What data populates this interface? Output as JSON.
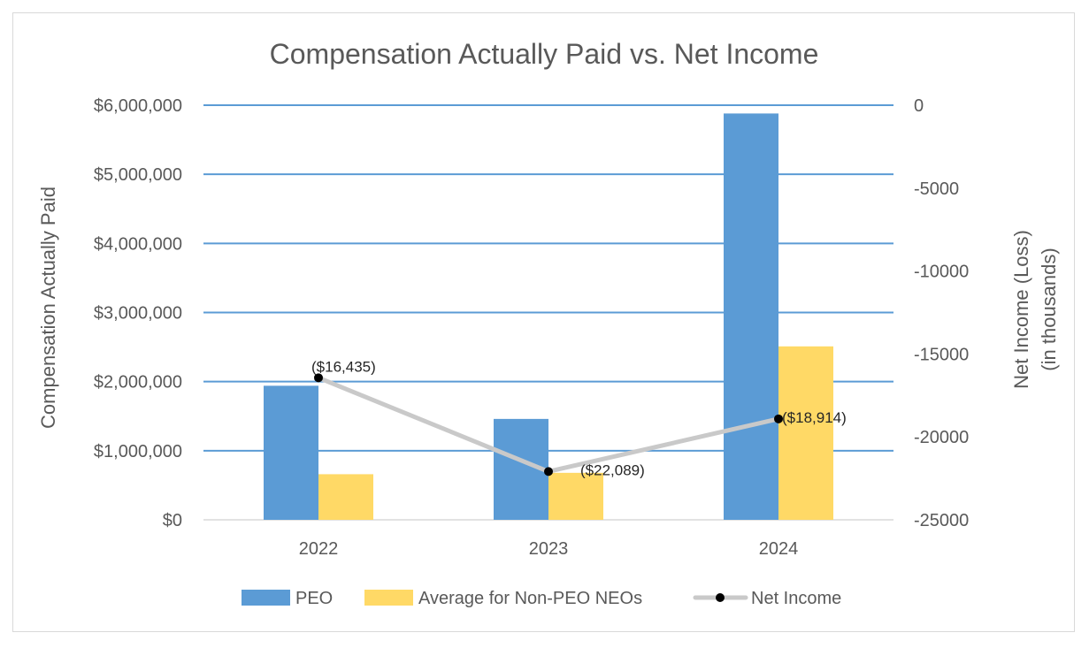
{
  "chart_data": {
    "type": "bar",
    "title": "Compensation Actually Paid vs. Net Income",
    "categories": [
      "2022",
      "2023",
      "2024"
    ],
    "ylabel": "Compensation Actually Paid",
    "y2label_line1": "Net Income (Loss)",
    "y2label_line2": "(in thousands)",
    "ylim": [
      0,
      6000000
    ],
    "y2lim": [
      -25000,
      0
    ],
    "yticks": [
      "$0",
      "$1,000,000",
      "$2,000,000",
      "$3,000,000",
      "$4,000,000",
      "$5,000,000",
      "$6,000,000"
    ],
    "y2ticks": [
      "-25000",
      "-20000",
      "-15000",
      "-10000",
      "-5000",
      "0"
    ],
    "grid": true,
    "legend_position": "bottom",
    "series": [
      {
        "name": "PEO",
        "type": "bar",
        "axis": "left",
        "color": "#5b9bd5",
        "values": [
          1940000,
          1460000,
          5880000
        ]
      },
      {
        "name": "Average for Non-PEO NEOs",
        "type": "bar",
        "axis": "left",
        "color": "#ffd966",
        "values": [
          660000,
          680000,
          2510000
        ]
      },
      {
        "name": "Net Income",
        "type": "line",
        "axis": "right",
        "color": "#c9c9c9",
        "marker_color": "#000000",
        "values": [
          -16435,
          -22089,
          -18914
        ],
        "labels": [
          "($16,435)",
          "($22,089)",
          "($18,914)"
        ]
      }
    ]
  }
}
